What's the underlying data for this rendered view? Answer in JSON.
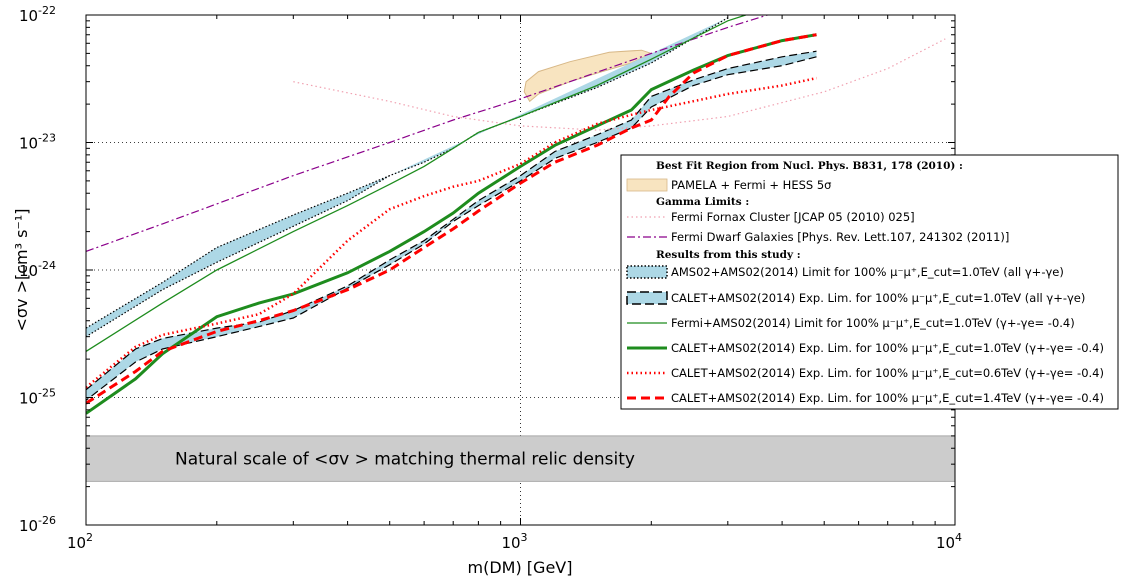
{
  "chart_data": {
    "type": "line",
    "xlabel": "m(DM) [GeV]",
    "ylabel": "<σv >[cm³ s⁻¹]",
    "xscale": "log",
    "yscale": "log",
    "xlim": [
      100,
      10000
    ],
    "ylim": [
      1e-26,
      1e-22
    ],
    "grid": "dotted at 10^3 GeV and each decade of y",
    "legend_position": "right",
    "x_ticks": [
      {
        "value": 100,
        "base": "10",
        "exp": "2"
      },
      {
        "value": 1000,
        "base": "10",
        "exp": "3"
      },
      {
        "value": 10000,
        "base": "10",
        "exp": "4"
      }
    ],
    "y_ticks": [
      {
        "value": 1e-26,
        "base": "10",
        "exp": "-26"
      },
      {
        "value": 1e-25,
        "base": "10",
        "exp": "-25"
      },
      {
        "value": 1e-24,
        "base": "10",
        "exp": "-24"
      },
      {
        "value": 1e-23,
        "base": "10",
        "exp": "-23"
      },
      {
        "value": 1e-22,
        "base": "10",
        "exp": "-22"
      }
    ],
    "thermal_band": {
      "label": "Natural scale of  <σv > matching thermal relic density",
      "y_range": [
        2.2e-26,
        5e-26
      ],
      "color": "#cccccc"
    },
    "regions": [
      {
        "name": "PAMELA + Fermi + HESS 5σ",
        "fill": "#f8e4c0",
        "edge": "#d8b887",
        "polygon": [
          [
            1050,
            2.1e-23
          ],
          [
            1100,
            2.4e-23
          ],
          [
            1300,
            3e-23
          ],
          [
            1500,
            3.5e-23
          ],
          [
            1800,
            4.2e-23
          ],
          [
            2000,
            5e-23
          ],
          [
            1900,
            5.3e-23
          ],
          [
            1600,
            5.1e-23
          ],
          [
            1300,
            4.3e-23
          ],
          [
            1100,
            3.6e-23
          ],
          [
            1030,
            3e-23
          ],
          [
            1020,
            2.5e-23
          ]
        ]
      },
      {
        "name": "AMS02+AMS02(2014) Limit for 100% μ⁻μ⁺,E_cut=1.0TeV (all γ+-γe)",
        "fill": "#add8e6",
        "edge": "#000000",
        "upper": [
          [
            100,
            3.5e-25
          ],
          [
            150,
            8e-25
          ],
          [
            200,
            1.5e-24
          ],
          [
            300,
            2.7e-24
          ],
          [
            400,
            4e-24
          ],
          [
            500,
            5.5e-24
          ],
          [
            600,
            7e-24
          ],
          [
            700,
            9e-24
          ],
          [
            800,
            1.2e-23
          ],
          [
            1000,
            1.6e-23
          ],
          [
            1500,
            2.7e-23
          ],
          [
            2000,
            4.2e-23
          ],
          [
            3000,
            9.5e-23
          ]
        ],
        "lower": [
          [
            500,
            5.5e-24
          ],
          [
            400,
            3.5e-24
          ],
          [
            300,
            2.2e-24
          ],
          [
            200,
            1.15e-24
          ],
          [
            150,
            7e-25
          ],
          [
            100,
            3e-25
          ]
        ]
      },
      {
        "name": "CALET+AMS02(2014) Exp. Lim. for 100% μ⁻μ⁺,E_cut=1.0TeV (all γ+-γe)",
        "fill": "#add8e6",
        "edge": "#000000",
        "upper": [
          [
            100,
            1.15e-25
          ],
          [
            130,
            2.4e-25
          ],
          [
            150,
            2.9e-25
          ],
          [
            200,
            3.5e-25
          ],
          [
            250,
            3.9e-25
          ],
          [
            300,
            4.8e-25
          ],
          [
            400,
            7.5e-25
          ],
          [
            500,
            1.2e-24
          ],
          [
            600,
            1.7e-24
          ],
          [
            700,
            2.5e-24
          ],
          [
            800,
            3.5e-24
          ],
          [
            1000,
            5.5e-24
          ],
          [
            1200,
            8.5e-24
          ],
          [
            1500,
            1.15e-23
          ],
          [
            1800,
            1.5e-23
          ],
          [
            2000,
            2.3e-23
          ],
          [
            2500,
            3.1e-23
          ],
          [
            3000,
            3.8e-23
          ],
          [
            4000,
            4.7e-23
          ],
          [
            4800,
            5.2e-23
          ]
        ],
        "lower": [
          [
            4800,
            4.7e-23
          ],
          [
            4000,
            4e-23
          ],
          [
            3000,
            3.4e-23
          ],
          [
            2500,
            2.8e-23
          ],
          [
            2000,
            1.9e-23
          ],
          [
            1800,
            1.3e-23
          ],
          [
            1500,
            1e-23
          ],
          [
            1200,
            7.5e-24
          ],
          [
            1000,
            5e-24
          ],
          [
            800,
            3.2e-24
          ],
          [
            700,
            2.4e-24
          ],
          [
            600,
            1.6e-24
          ],
          [
            500,
            1.1e-24
          ],
          [
            400,
            7.2e-25
          ],
          [
            300,
            4.2e-25
          ],
          [
            250,
            3.6e-25
          ],
          [
            200,
            3e-25
          ],
          [
            150,
            2.4e-25
          ],
          [
            130,
            1.9e-25
          ],
          [
            100,
            9.5e-26
          ]
        ]
      }
    ],
    "series": [
      {
        "name": "Fermi Fornax Cluster [JCAP 05 (2010) 025]",
        "color": "#f0a0b0",
        "style": "dotted",
        "width": 1.2,
        "points": [
          [
            300,
            3e-23
          ],
          [
            500,
            2.1e-23
          ],
          [
            700,
            1.6e-23
          ],
          [
            1000,
            1.35e-23
          ],
          [
            1500,
            1.25e-23
          ],
          [
            2000,
            1.35e-23
          ],
          [
            3000,
            1.6e-23
          ],
          [
            5000,
            2.5e-23
          ],
          [
            7000,
            3.8e-23
          ],
          [
            9500,
            6.5e-23
          ]
        ]
      },
      {
        "name": "Fermi Dwarf Galaxies [Phys. Rev. Lett.107, 241302 (2011)]",
        "color": "#8b008b",
        "style": "dashdot",
        "width": 1.2,
        "points": [
          [
            100,
            1.4e-24
          ],
          [
            150,
            2.3e-24
          ],
          [
            200,
            3.3e-24
          ],
          [
            300,
            5.5e-24
          ],
          [
            500,
            1e-23
          ],
          [
            700,
            1.5e-23
          ],
          [
            1000,
            2.2e-23
          ],
          [
            2000,
            5e-23
          ],
          [
            3000,
            8e-23
          ],
          [
            3700,
            1e-22
          ]
        ]
      },
      {
        "name": "Fermi+AMS02(2014) Limit for 100% μ⁻μ⁺,E_cut=1.0TeV (γ+-γe= -0.4)",
        "color": "#1e8c1e",
        "style": "solid",
        "width": 1.3,
        "points": [
          [
            100,
            2.3e-25
          ],
          [
            150,
            5.5e-25
          ],
          [
            200,
            1e-24
          ],
          [
            300,
            2e-24
          ],
          [
            400,
            3.2e-24
          ],
          [
            500,
            4.7e-24
          ],
          [
            600,
            6.5e-24
          ],
          [
            700,
            9e-24
          ],
          [
            800,
            1.2e-23
          ],
          [
            1000,
            1.6e-23
          ],
          [
            1500,
            2.8e-23
          ],
          [
            2000,
            4.5e-23
          ],
          [
            3000,
            9e-23
          ],
          [
            3300,
            1e-22
          ]
        ]
      },
      {
        "name": "CALET+AMS02(2014) Exp. Lim. for 100% μ⁻μ⁺,E_cut=1.0TeV (γ+-γe= -0.4)",
        "color": "#1e8c1e",
        "style": "solid",
        "width": 3,
        "points": [
          [
            100,
            7.5e-26
          ],
          [
            130,
            1.4e-25
          ],
          [
            150,
            2.2e-25
          ],
          [
            200,
            4.3e-25
          ],
          [
            250,
            5.5e-25
          ],
          [
            300,
            6.5e-25
          ],
          [
            400,
            9.5e-25
          ],
          [
            500,
            1.4e-24
          ],
          [
            600,
            2e-24
          ],
          [
            700,
            2.8e-24
          ],
          [
            800,
            4e-24
          ],
          [
            1000,
            6.5e-24
          ],
          [
            1200,
            9.5e-24
          ],
          [
            1500,
            1.35e-23
          ],
          [
            1800,
            1.8e-23
          ],
          [
            2000,
            2.6e-23
          ],
          [
            2500,
            3.7e-23
          ],
          [
            3000,
            4.8e-23
          ],
          [
            4000,
            6.3e-23
          ],
          [
            4800,
            7e-23
          ]
        ]
      },
      {
        "name": "CALET+AMS02(2014) Exp. Lim. for 100% μ⁻μ⁺,E_cut=0.6TeV (γ+-γe= -0.4)",
        "color": "#ff0000",
        "style": "dotted",
        "width": 2.5,
        "points": [
          [
            100,
            1.2e-25
          ],
          [
            130,
            2.5e-25
          ],
          [
            150,
            3.1e-25
          ],
          [
            200,
            3.8e-25
          ],
          [
            250,
            4.5e-25
          ],
          [
            300,
            6.5e-25
          ],
          [
            400,
            1.7e-24
          ],
          [
            500,
            3e-24
          ],
          [
            600,
            3.8e-24
          ],
          [
            700,
            4.5e-24
          ],
          [
            800,
            5e-24
          ],
          [
            1000,
            6.8e-24
          ],
          [
            1200,
            1e-23
          ],
          [
            1500,
            1.4e-23
          ],
          [
            1800,
            1.65e-23
          ],
          [
            2000,
            1.8e-23
          ],
          [
            3000,
            2.4e-23
          ],
          [
            4000,
            2.8e-23
          ],
          [
            4800,
            3.2e-23
          ]
        ]
      },
      {
        "name": "CALET+AMS02(2014) Exp. Lim. for 100% μ⁻μ⁺,E_cut=1.4TeV (γ+-γe= -0.4)",
        "color": "#ff0000",
        "style": "dashed",
        "width": 3,
        "points": [
          [
            100,
            9e-26
          ],
          [
            130,
            1.6e-25
          ],
          [
            150,
            2.3e-25
          ],
          [
            200,
            3.3e-25
          ],
          [
            250,
            4e-25
          ],
          [
            300,
            4.8e-25
          ],
          [
            400,
            7e-25
          ],
          [
            500,
            1e-24
          ],
          [
            600,
            1.5e-24
          ],
          [
            700,
            2.1e-24
          ],
          [
            800,
            2.9e-24
          ],
          [
            1000,
            4.8e-24
          ],
          [
            1200,
            7e-24
          ],
          [
            1500,
            9.5e-24
          ],
          [
            1800,
            1.3e-23
          ],
          [
            2000,
            1.5e-23
          ],
          [
            2200,
            2.3e-23
          ],
          [
            2500,
            3.5e-23
          ],
          [
            3000,
            4.8e-23
          ],
          [
            4000,
            6.3e-23
          ],
          [
            4800,
            7e-23
          ]
        ]
      }
    ],
    "legend": {
      "header1": "Best Fit Region from Nucl. Phys. B831, 178 (2010) :",
      "header2": "Gamma Limits :",
      "header3": "Results from this study :",
      "entries": [
        {
          "label": "PAMELA + Fermi + HESS 5σ",
          "kind": "region",
          "ref": 0
        },
        {
          "label": "Fermi Fornax Cluster [JCAP 05 (2010) 025]",
          "kind": "line",
          "ref": 0
        },
        {
          "label": "Fermi Dwarf Galaxies [Phys. Rev. Lett.107, 241302 (2011)]",
          "kind": "line",
          "ref": 1
        },
        {
          "label": "AMS02+AMS02(2014) Limit for 100% μ⁻μ⁺,E_cut=1.0TeV (all γ+-γe)",
          "kind": "region",
          "ref": 1
        },
        {
          "label": "CALET+AMS02(2014) Exp. Lim. for 100% μ⁻μ⁺,E_cut=1.0TeV (all γ+-γe)",
          "kind": "region",
          "ref": 2
        },
        {
          "label": "Fermi+AMS02(2014) Limit for 100% μ⁻μ⁺,E_cut=1.0TeV (γ+-γe= -0.4)",
          "kind": "line",
          "ref": 2
        },
        {
          "label": "CALET+AMS02(2014) Exp. Lim. for 100% μ⁻μ⁺,E_cut=1.0TeV (γ+-γe= -0.4)",
          "kind": "line",
          "ref": 3
        },
        {
          "label": "CALET+AMS02(2014) Exp. Lim. for 100% μ⁻μ⁺,E_cut=0.6TeV (γ+-γe= -0.4)",
          "kind": "line",
          "ref": 4
        },
        {
          "label": "CALET+AMS02(2014) Exp. Lim. for 100% μ⁻μ⁺,E_cut=1.4TeV (γ+-γe= -0.4)",
          "kind": "line",
          "ref": 5
        }
      ]
    }
  }
}
